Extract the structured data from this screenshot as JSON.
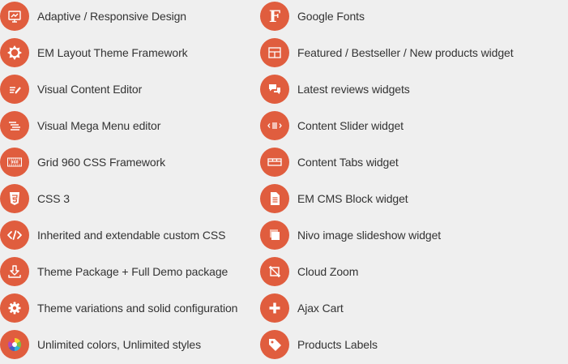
{
  "features": {
    "left": [
      {
        "icon": "responsive-screen-icon",
        "label": "Adaptive / Responsive Design"
      },
      {
        "icon": "gear-badge-icon",
        "label": "EM Layout Theme Framework"
      },
      {
        "icon": "pencil-lines-icon",
        "label": "Visual Content Editor"
      },
      {
        "icon": "menu-lines-icon",
        "label": "Visual Mega Menu editor"
      },
      {
        "icon": "grid-960-icon",
        "label": "Grid 960 CSS Framework"
      },
      {
        "icon": "css3-shield-icon",
        "label": "CSS 3"
      },
      {
        "icon": "code-brackets-icon",
        "label": "Inherited and extendable custom CSS"
      },
      {
        "icon": "download-arrow-icon",
        "label": "Theme Package + Full Demo package"
      },
      {
        "icon": "cog-icon",
        "label": "Theme variations and solid configuration"
      },
      {
        "icon": "color-wheel-icon",
        "label": "Unlimited colors, Unlimited styles"
      }
    ],
    "right": [
      {
        "icon": "font-f-icon",
        "label": "Google Fonts",
        "glyph": "F"
      },
      {
        "icon": "product-grid-icon",
        "label": "Featured / Bestseller / New products widget"
      },
      {
        "icon": "speech-bubbles-icon",
        "label": "Latest reviews widgets"
      },
      {
        "icon": "slider-arrows-icon",
        "label": "Content Slider widget"
      },
      {
        "icon": "tabs-icon",
        "label": "Content Tabs widget"
      },
      {
        "icon": "document-icon",
        "label": "EM CMS Block widget"
      },
      {
        "icon": "stacked-images-icon",
        "label": "Nivo image slideshow widget"
      },
      {
        "icon": "crop-zoom-icon",
        "label": "Cloud Zoom"
      },
      {
        "icon": "plus-icon",
        "label": "Ajax Cart"
      },
      {
        "icon": "tag-icon",
        "label": "Products Labels"
      }
    ]
  },
  "colors": {
    "accent": "#e05d3e",
    "background": "#efefef",
    "text": "#333333"
  }
}
